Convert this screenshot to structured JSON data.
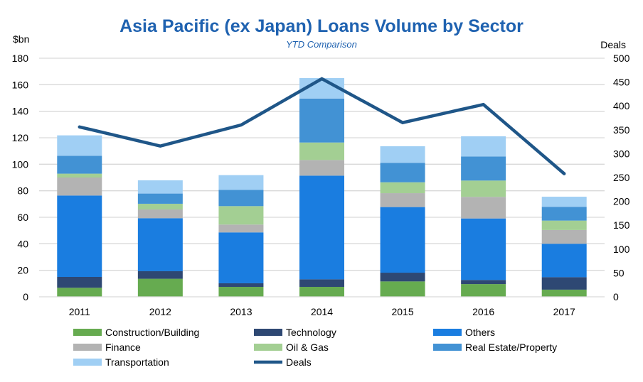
{
  "chart_data": {
    "type": "bar",
    "stacked": true,
    "title": "Asia Pacific (ex Japan) Loans Volume by Sector",
    "subtitle": "YTD Comparison",
    "ylabel": "$bn",
    "y2label": "Deals",
    "ylim": [
      0,
      180
    ],
    "y2lim": [
      0,
      500
    ],
    "yticks": [
      0,
      20,
      40,
      60,
      80,
      100,
      120,
      140,
      160,
      180
    ],
    "y2ticks": [
      0,
      50,
      100,
      150,
      200,
      250,
      300,
      350,
      400,
      450,
      500
    ],
    "grid": true,
    "legend_position": "bottom",
    "categories": [
      "2011",
      "2012",
      "2013",
      "2014",
      "2015",
      "2016",
      "2017"
    ],
    "series": [
      {
        "name": "Construction/Building",
        "color": "#66ab50",
        "values": [
          6.8,
          13.6,
          7.5,
          7.5,
          11.6,
          9.6,
          5.4
        ]
      },
      {
        "name": "Technology",
        "color": "#2e4873",
        "values": [
          8.2,
          5.7,
          2.7,
          5.7,
          6.6,
          3.1,
          9.4
        ]
      },
      {
        "name": "Others",
        "color": "#1a7de0",
        "values": [
          61.4,
          40.0,
          38.4,
          78.2,
          49.5,
          46.4,
          25.2
        ]
      },
      {
        "name": "Finance",
        "color": "#b3b3b3",
        "values": [
          13.6,
          6.6,
          5.9,
          11.8,
          10.5,
          16.3,
          10.4
        ]
      },
      {
        "name": "Oil & Gas",
        "color": "#a3cf93",
        "values": [
          2.9,
          4.3,
          13.9,
          13.2,
          8.2,
          12.3,
          7.1
        ]
      },
      {
        "name": "Real Estate/Property",
        "color": "#4292d4",
        "values": [
          13.5,
          7.7,
          12.3,
          33.2,
          14.7,
          18.2,
          10.4
        ]
      },
      {
        "name": "Transportation",
        "color": "#a0cff4",
        "values": [
          15.4,
          10.0,
          11.1,
          15.4,
          12.5,
          15.2,
          7.6
        ]
      }
    ],
    "line_series": {
      "name": "Deals",
      "color": "#1f5688",
      "axis": "right",
      "values": [
        356,
        316,
        360,
        457,
        365,
        403,
        258
      ]
    },
    "title_color": "#1f62b0"
  }
}
